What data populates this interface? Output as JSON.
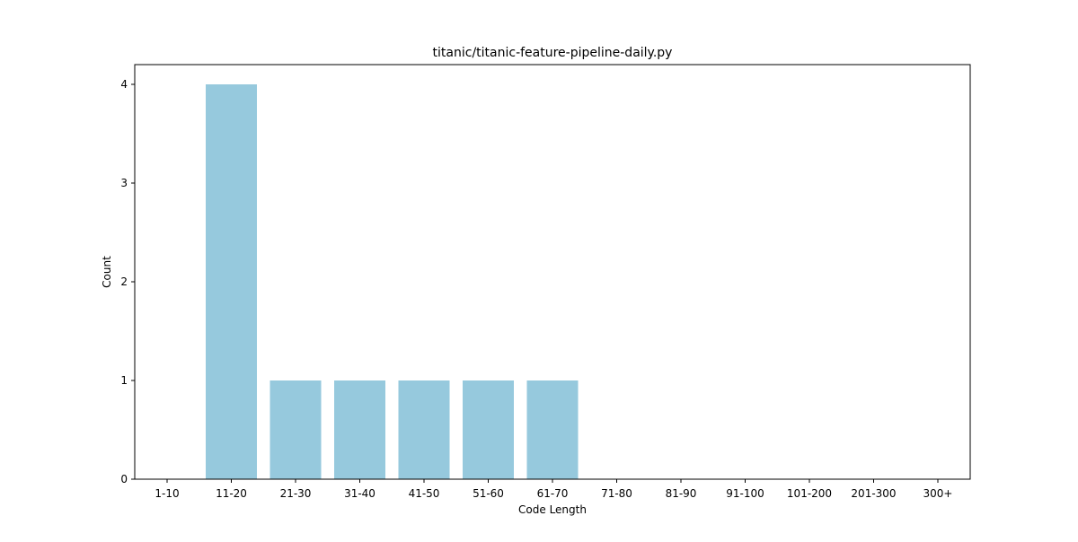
{
  "chart_data": {
    "type": "bar",
    "title": "titanic/titanic-feature-pipeline-daily.py",
    "xlabel": "Code Length",
    "ylabel": "Count",
    "categories": [
      "1-10",
      "11-20",
      "21-30",
      "31-40",
      "41-50",
      "51-60",
      "61-70",
      "71-80",
      "81-90",
      "91-100",
      "101-200",
      "201-300",
      "300+"
    ],
    "values": [
      0,
      4,
      1,
      1,
      1,
      1,
      1,
      0,
      0,
      0,
      0,
      0,
      0
    ],
    "ylim": [
      0,
      4.2
    ],
    "yticks": [
      0,
      1,
      2,
      3,
      4
    ],
    "grid": false,
    "colors": {
      "bar": "#96c9dd",
      "axis": "#000000"
    }
  }
}
